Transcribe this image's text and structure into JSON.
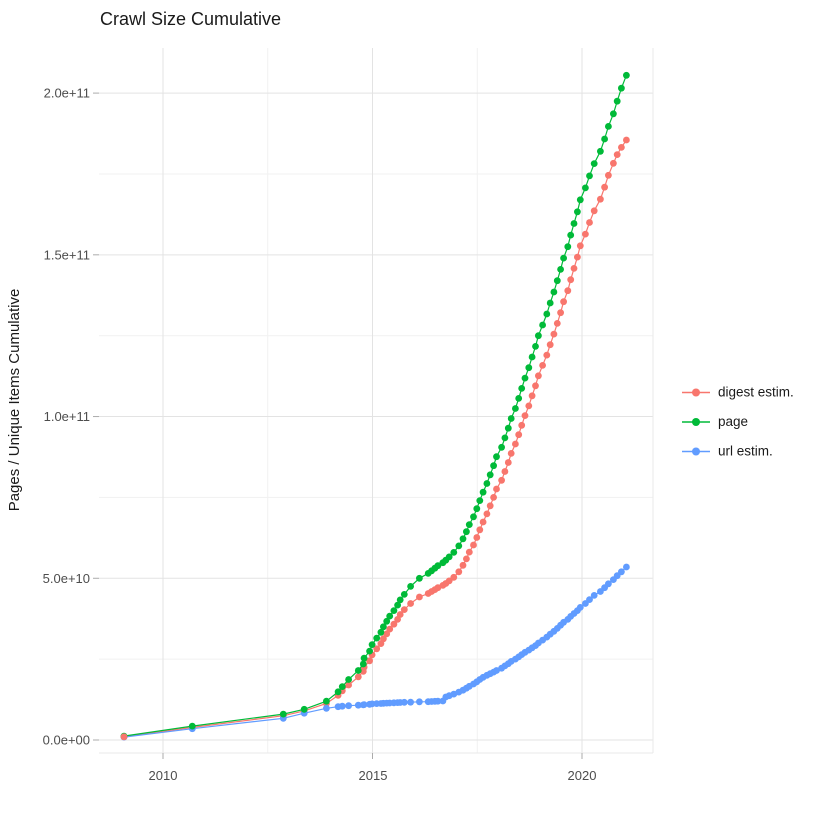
{
  "title": "Crawl Size Cumulative",
  "y_axis": {
    "title": "Pages / Unique Items Cumulative",
    "tick_labels": [
      "2.0e+11",
      "1.5e+11",
      "1.0e+11",
      "5.0e+10",
      "0.0e+00"
    ]
  },
  "x_axis": {
    "tick_labels": [
      "2010",
      "2015",
      "2020"
    ]
  },
  "legend": {
    "items": [
      {
        "label": "digest estim.",
        "color": "#F8766D"
      },
      {
        "label": "page",
        "color": "#00BA38"
      },
      {
        "label": "url estim.",
        "color": "#619CFF"
      }
    ]
  },
  "chart_data": {
    "type": "scatter",
    "title": "Crawl Size Cumulative",
    "xlabel": "",
    "ylabel": "Pages / Unique Items Cumulative",
    "x_unit": "decimal year",
    "y_unit": "items (values given in billions, 1e9)",
    "grid": true,
    "legend_position": "right",
    "xlim": [
      2008.5,
      2021.7
    ],
    "ylim_e9": [
      -9,
      216
    ],
    "x_major_ticks": [
      2010,
      2015,
      2020
    ],
    "x_minor_ticks": [
      2012.5,
      2017.5
    ],
    "y_major_ticks_e9": [
      0,
      50,
      100,
      150,
      200
    ],
    "y_minor_ticks_e9": [
      25,
      75,
      125,
      175
    ],
    "x": [
      2009.07,
      2010.7,
      2012.87,
      2013.37,
      2013.9,
      2014.18,
      2014.28,
      2014.43,
      2014.66,
      2014.78,
      2014.8,
      2014.93,
      2014.99,
      2015.1,
      2015.2,
      2015.26,
      2015.34,
      2015.41,
      2015.51,
      2015.6,
      2015.66,
      2015.76,
      2015.91,
      2016.12,
      2016.33,
      2016.41,
      2016.49,
      2016.56,
      2016.68,
      2016.75,
      2016.83,
      2016.94,
      2017.06,
      2017.16,
      2017.24,
      2017.31,
      2017.41,
      2017.49,
      2017.56,
      2017.64,
      2017.73,
      2017.81,
      2017.89,
      2017.96,
      2018.08,
      2018.16,
      2018.24,
      2018.31,
      2018.41,
      2018.49,
      2018.56,
      2018.64,
      2018.73,
      2018.81,
      2018.89,
      2018.96,
      2019.06,
      2019.16,
      2019.24,
      2019.33,
      2019.41,
      2019.49,
      2019.56,
      2019.66,
      2019.73,
      2019.81,
      2019.89,
      2019.96,
      2020.08,
      2020.18,
      2020.29,
      2020.44,
      2020.54,
      2020.63,
      2020.75,
      2020.84,
      2020.94,
      2021.06
    ],
    "series": [
      {
        "name": "digest estim.",
        "color": "#F8766D",
        "values_e9": [
          1.0,
          3.9,
          7.5,
          9.0,
          11.3,
          13.8,
          15.2,
          17.0,
          19.5,
          21.2,
          22.5,
          24.5,
          26.3,
          28.2,
          29.8,
          31.3,
          32.8,
          34.3,
          35.8,
          37.3,
          38.8,
          40.3,
          42.2,
          44.2,
          45.3,
          45.9,
          46.5,
          47.1,
          47.8,
          48.4,
          49.2,
          50.3,
          52.0,
          54.0,
          56.0,
          58.1,
          60.3,
          62.6,
          65.0,
          67.4,
          69.9,
          72.4,
          75.0,
          77.6,
          80.3,
          83.0,
          85.8,
          88.6,
          91.5,
          94.4,
          97.3,
          100.3,
          103.3,
          106.4,
          109.5,
          112.6,
          115.8,
          119.0,
          122.2,
          125.5,
          128.8,
          132.1,
          135.5,
          138.9,
          142.3,
          145.8,
          149.3,
          152.8,
          156.4,
          160.0,
          163.6,
          167.2,
          170.9,
          174.6,
          178.3,
          181.0,
          183.2,
          185.5
        ]
      },
      {
        "name": "page",
        "color": "#00BA38",
        "values_e9": [
          1.2,
          4.3,
          8.0,
          9.5,
          12.0,
          14.9,
          16.5,
          18.7,
          21.5,
          23.5,
          25.3,
          27.5,
          29.5,
          31.5,
          33.3,
          35.0,
          36.7,
          38.3,
          40.0,
          41.7,
          43.3,
          45.0,
          47.5,
          50.0,
          51.5,
          52.3,
          53.1,
          53.9,
          54.8,
          55.6,
          56.6,
          58.0,
          60.0,
          62.2,
          64.4,
          66.6,
          69.0,
          71.5,
          74.0,
          76.6,
          79.3,
          82.0,
          84.8,
          87.6,
          90.5,
          93.4,
          96.4,
          99.4,
          102.5,
          105.6,
          108.7,
          111.9,
          115.1,
          118.4,
          121.7,
          125.0,
          128.3,
          131.7,
          135.1,
          138.5,
          142.0,
          145.5,
          149.0,
          152.5,
          156.1,
          159.7,
          163.3,
          167.0,
          170.7,
          174.4,
          178.2,
          182.0,
          185.8,
          189.7,
          193.6,
          197.5,
          201.5,
          205.5
        ]
      },
      {
        "name": "url estim.",
        "color": "#619CFF",
        "values_e9": [
          0.9,
          3.5,
          6.7,
          8.3,
          9.8,
          10.3,
          10.45,
          10.6,
          10.75,
          10.85,
          10.95,
          11.05,
          11.15,
          11.25,
          11.3,
          11.35,
          11.4,
          11.45,
          11.5,
          11.55,
          11.6,
          11.65,
          11.7,
          11.8,
          11.85,
          11.9,
          11.95,
          12.0,
          12.05,
          13.3,
          13.7,
          14.2,
          14.8,
          15.4,
          16.0,
          16.6,
          17.3,
          18.0,
          18.7,
          19.4,
          20.0,
          20.5,
          21.0,
          21.5,
          22.2,
          22.9,
          23.6,
          24.3,
          25.0,
          25.7,
          26.4,
          27.1,
          27.8,
          28.5,
          29.2,
          30.0,
          30.9,
          31.8,
          32.7,
          33.6,
          34.5,
          35.5,
          36.4,
          37.3,
          38.2,
          39.1,
          40.0,
          41.0,
          42.2,
          43.4,
          44.7,
          45.9,
          47.1,
          48.3,
          49.6,
          50.8,
          52.0,
          53.5
        ]
      }
    ]
  }
}
